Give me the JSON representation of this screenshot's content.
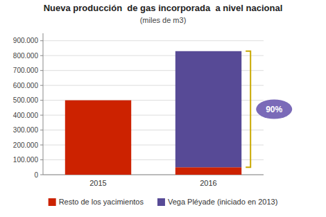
{
  "chart_data": {
    "type": "bar",
    "stacked": true,
    "title": "Nueva producción  de gas incorporada  a nivel nacional",
    "subtitle": "(miles de m3)",
    "categories": [
      "2015",
      "2016"
    ],
    "series": [
      {
        "name": "Resto de los yacimientos",
        "color": "#cc2200",
        "values": [
          500000,
          50000
        ]
      },
      {
        "name": "Vega Pléyade (iniciado en 2013)",
        "color": "#574a96",
        "values": [
          0,
          780000
        ]
      }
    ],
    "ylim": [
      0,
      950000
    ],
    "yticks": [
      0,
      {
        "value": 100000,
        "label": "100.000"
      },
      {
        "value": 200000,
        "label": "200.000"
      },
      {
        "value": 300000,
        "label": "300.000"
      },
      {
        "value": 400000,
        "label": "400.000"
      },
      {
        "value": 500000,
        "label": "500.000"
      },
      {
        "value": 600000,
        "label": "600.000"
      },
      {
        "value": 700000,
        "label": "700.000"
      },
      {
        "value": 800000,
        "label": "800.000"
      },
      {
        "value": 900000,
        "label": "900.000"
      }
    ],
    "grid": true,
    "legend": "bottom",
    "annotation": "90%"
  }
}
